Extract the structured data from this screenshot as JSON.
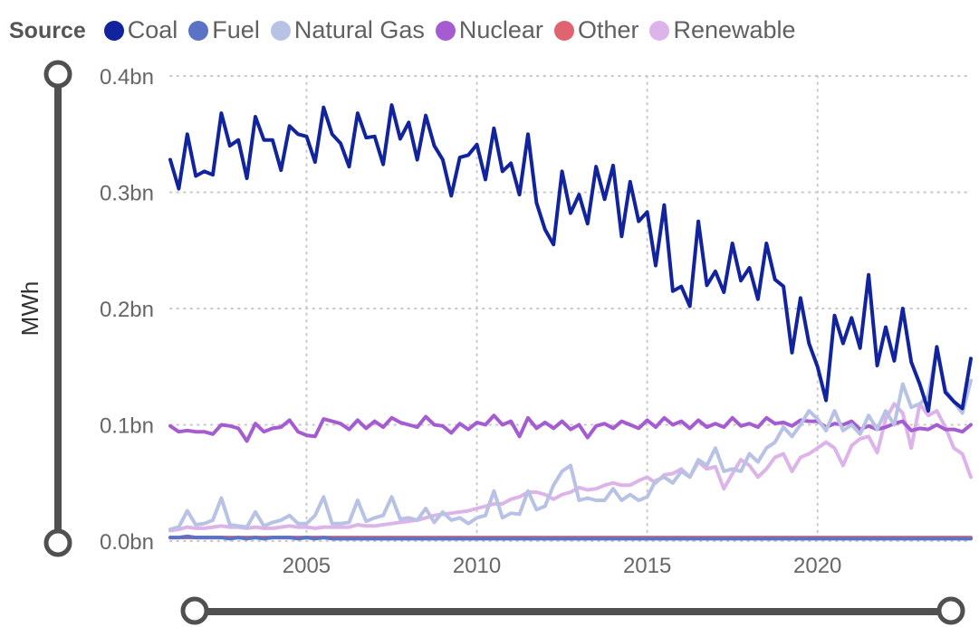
{
  "legend": {
    "title": "Source",
    "items": [
      {
        "label": "Coal",
        "color": "#12239E"
      },
      {
        "label": "Fuel",
        "color": "#5B73C4"
      },
      {
        "label": "Natural Gas",
        "color": "#B8C2E4"
      },
      {
        "label": "Nuclear",
        "color": "#A55CD1"
      },
      {
        "label": "Other",
        "color": "#E06470"
      },
      {
        "label": "Renewable",
        "color": "#DDB4EA"
      }
    ]
  },
  "chart_data": {
    "type": "line",
    "title": "",
    "xlabel": "",
    "ylabel": "MWh",
    "xlim": [
      2001.0,
      2024.5
    ],
    "ylim": [
      0,
      400000000
    ],
    "y_ticks": [
      0,
      100000000,
      200000000,
      300000000,
      400000000
    ],
    "y_tick_labels": [
      "0.0bn",
      "0.1bn",
      "0.2bn",
      "0.3bn",
      "0.4bn"
    ],
    "x_ticks": [
      2005,
      2010,
      2015,
      2020
    ],
    "x_tick_labels": [
      "2005",
      "2010",
      "2015",
      "2020"
    ],
    "grid": true,
    "legend_position": "top",
    "series": [
      {
        "name": "Coal",
        "color": "#12239E",
        "x_start": 2001.0,
        "x_step": 0.25,
        "values": [
          328,
          303,
          350,
          314,
          318,
          315,
          368,
          340,
          345,
          312,
          365,
          345,
          345,
          319,
          357,
          350,
          348,
          326,
          373,
          350,
          342,
          322,
          368,
          347,
          348,
          324,
          375,
          346,
          360,
          328,
          366,
          340,
          328,
          297,
          330,
          332,
          341,
          311,
          355,
          318,
          325,
          298,
          350,
          291,
          268,
          255,
          318,
          282,
          298,
          273,
          322,
          294,
          323,
          262,
          309,
          275,
          283,
          237,
          289,
          215,
          219,
          202,
          275,
          220,
          232,
          214,
          256,
          224,
          235,
          208,
          256,
          225,
          219,
          162,
          209,
          170,
          150,
          121,
          194,
          170,
          192,
          166,
          229,
          151,
          184,
          155,
          200,
          154,
          135,
          112,
          167,
          128,
          120,
          114,
          157
        ]
      },
      {
        "name": "Fuel",
        "color": "#5B73C4",
        "x_start": 2001.0,
        "x_step": 0.25,
        "values": [
          3,
          3,
          4,
          3,
          3,
          3,
          3,
          2,
          3,
          2,
          3,
          2,
          3,
          3,
          3,
          2,
          3,
          2,
          3,
          2,
          2,
          2,
          2,
          2,
          2,
          2,
          2,
          2,
          2,
          2,
          2,
          2,
          2,
          2,
          2,
          2,
          2,
          2,
          2,
          2,
          2,
          2,
          2,
          2,
          2,
          2,
          2,
          2,
          2,
          2,
          2,
          2,
          2,
          2,
          2,
          2,
          2,
          2,
          2,
          2,
          2,
          2,
          2,
          2,
          2,
          2,
          2,
          2,
          2,
          2,
          2,
          2,
          2,
          2,
          2,
          2,
          2,
          2,
          2,
          2,
          2,
          2,
          2,
          2,
          2,
          2,
          2,
          2,
          2,
          2,
          2,
          2,
          2,
          2,
          2
        ]
      },
      {
        "name": "Natural Gas",
        "color": "#B8C2E4",
        "x_start": 2001.0,
        "x_step": 0.25,
        "values": [
          10,
          12,
          26,
          14,
          15,
          18,
          37,
          14,
          13,
          12,
          25,
          13,
          16,
          18,
          22,
          15,
          15,
          22,
          38,
          15,
          15,
          16,
          35,
          17,
          20,
          22,
          38,
          19,
          20,
          18,
          28,
          16,
          25,
          18,
          20,
          15,
          20,
          22,
          43,
          20,
          24,
          23,
          43,
          27,
          30,
          48,
          60,
          65,
          35,
          37,
          35,
          35,
          45,
          35,
          40,
          35,
          38,
          52,
          55,
          50,
          60,
          55,
          70,
          65,
          80,
          60,
          62,
          60,
          75,
          68,
          80,
          85,
          98,
          90,
          100,
          112,
          105,
          95,
          112,
          95,
          100,
          92,
          108,
          96,
          112,
          100,
          135,
          115,
          118,
          125,
          165,
          130,
          120,
          110,
          138
        ]
      },
      {
        "name": "Nuclear",
        "color": "#A55CD1",
        "x_start": 2001.0,
        "x_step": 0.25,
        "values": [
          99,
          94,
          95,
          94,
          94,
          92,
          100,
          99,
          97,
          86,
          101,
          94,
          97,
          98,
          104,
          94,
          91,
          90,
          105,
          103,
          101,
          96,
          104,
          97,
          103,
          98,
          106,
          102,
          100,
          98,
          107,
          100,
          99,
          93,
          101,
          96,
          102,
          100,
          108,
          100,
          103,
          90,
          106,
          97,
          102,
          97,
          103,
          96,
          100,
          89,
          99,
          101,
          97,
          103,
          100,
          97,
          104,
          98,
          106,
          100,
          103,
          97,
          104,
          98,
          101,
          98,
          106,
          99,
          101,
          98,
          106,
          101,
          102,
          99,
          104,
          103,
          103,
          98,
          101,
          100,
          103,
          96,
          99,
          96,
          98,
          101,
          103,
          95,
          97,
          96,
          100,
          96,
          96,
          94,
          100
        ]
      },
      {
        "name": "Other",
        "color": "#E06470",
        "x_start": 2001.0,
        "x_step": 0.25,
        "values": [
          3,
          3,
          3,
          3,
          3,
          3,
          3,
          3,
          3,
          3,
          3,
          3,
          3,
          3,
          3,
          3,
          3,
          3,
          3,
          3,
          3,
          3,
          3,
          3,
          3,
          3,
          3,
          3,
          3,
          3,
          3,
          3,
          3,
          3,
          3,
          3,
          3,
          3,
          3,
          3,
          3,
          3,
          3,
          3,
          3,
          3,
          3,
          3,
          3,
          3,
          3,
          3,
          3,
          3,
          3,
          3,
          3,
          3,
          3,
          3,
          3,
          3,
          3,
          3,
          3,
          3,
          3,
          3,
          3,
          3,
          3,
          3,
          3,
          3,
          3,
          3,
          3,
          3,
          3,
          3,
          3,
          3,
          3,
          3,
          3,
          3,
          3,
          3,
          3,
          3,
          3,
          3,
          3,
          3,
          3
        ]
      },
      {
        "name": "Renewable",
        "color": "#DDB4EA",
        "x_start": 2001.0,
        "x_step": 0.25,
        "values": [
          9,
          10,
          12,
          11,
          11,
          12,
          13,
          12,
          12,
          11,
          12,
          11,
          11,
          12,
          13,
          12,
          12,
          11,
          12,
          12,
          12,
          12,
          14,
          13,
          13,
          14,
          15,
          16,
          17,
          18,
          20,
          22,
          23,
          24,
          25,
          26,
          28,
          30,
          32,
          32,
          36,
          38,
          42,
          42,
          40,
          36,
          40,
          42,
          46,
          44,
          45,
          48,
          50,
          48,
          48,
          52,
          55,
          50,
          57,
          58,
          62,
          55,
          68,
          62,
          64,
          45,
          58,
          70,
          65,
          55,
          62,
          72,
          75,
          60,
          72,
          75,
          80,
          85,
          80,
          65,
          82,
          88,
          90,
          76,
          105,
          118,
          110,
          80,
          118,
          108,
          112,
          98,
          80,
          75,
          55
        ]
      }
    ]
  }
}
